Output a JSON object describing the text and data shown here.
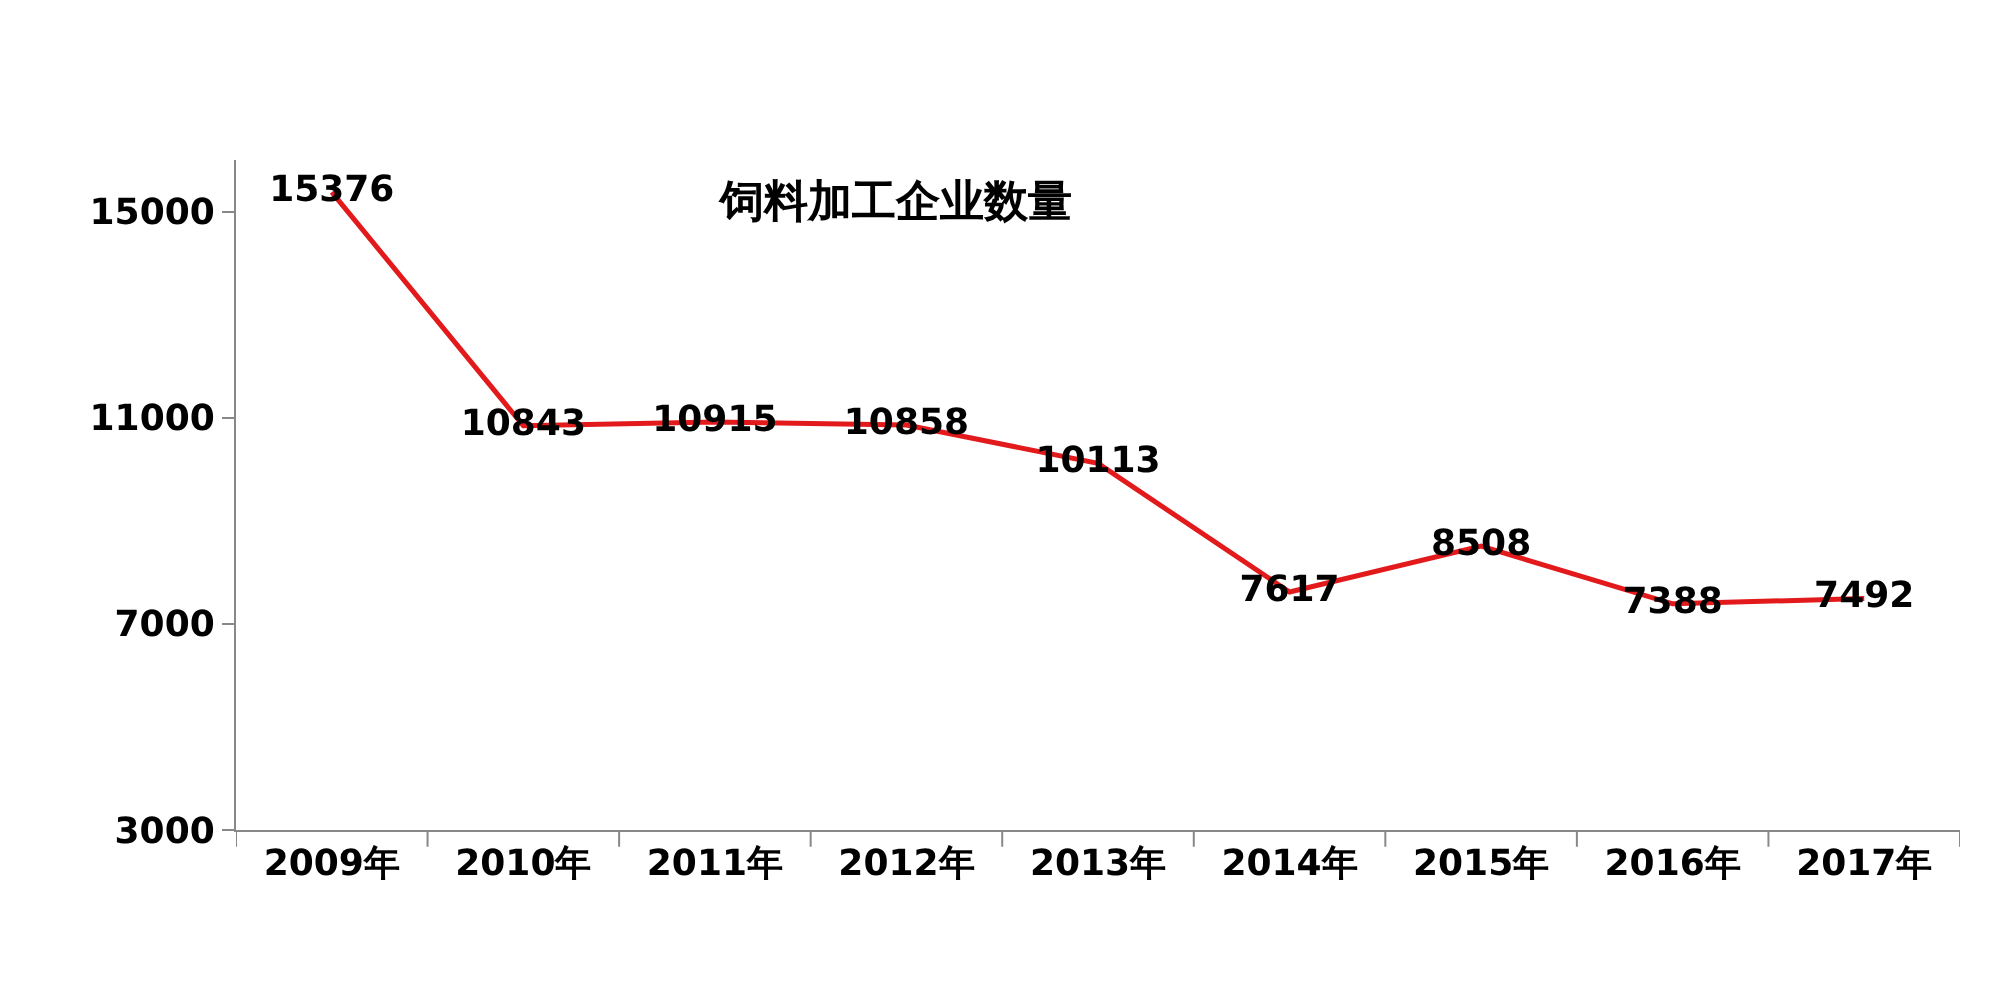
{
  "chart_data": {
    "type": "line",
    "title": "饲料加工企业数量",
    "categories": [
      "2009年",
      "2010年",
      "2011年",
      "2012年",
      "2013年",
      "2014年",
      "2015年",
      "2016年",
      "2017年"
    ],
    "series": [
      {
        "color": "#e31a1c",
        "values": [
          15376,
          10843,
          10915,
          10858,
          10113,
          7617,
          8508,
          7388,
          7492
        ]
      }
    ],
    "ylim": [
      3000,
      16000
    ],
    "yticks": [
      3000,
      7000,
      11000,
      15000
    ],
    "marker": "none",
    "line_style": "solid",
    "data_labels": true
  }
}
